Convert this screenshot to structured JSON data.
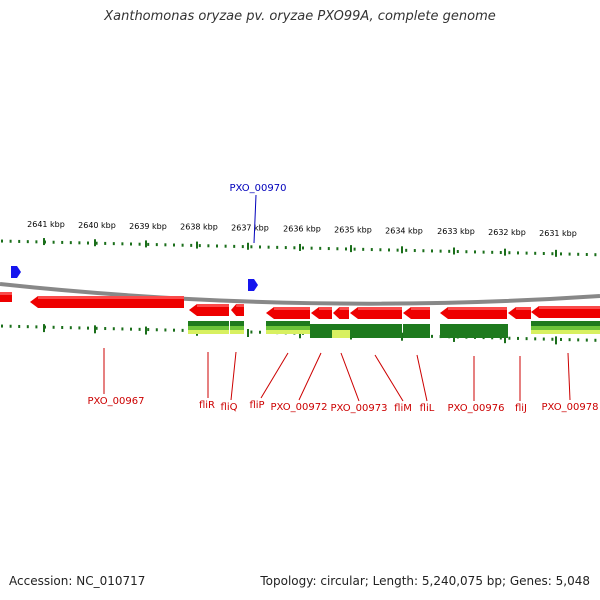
{
  "title": "Xanthomonas oryzae pv. oryzae PXO99A, complete genome",
  "footer": {
    "accession": "Accession: NC_010717",
    "summary": "Topology: circular; Length: 5,240,075 bp; Genes: 5,048"
  },
  "colors": {
    "gene": "#ee0000",
    "gene_label": "#cc0000",
    "highlight_label": "#0000bb",
    "tick": "#1a6e1a",
    "backbone": "#888888",
    "feature_dark": "#1e7a1e",
    "feature_mid": "#6cc43a",
    "feature_light": "#d8f060"
  },
  "scale": {
    "ticks": [
      {
        "label": "2641 kbp",
        "value": 2641
      },
      {
        "label": "2640 kbp",
        "value": 2640
      },
      {
        "label": "2639 kbp",
        "value": 2639
      },
      {
        "label": "2638 kbp",
        "value": 2638
      },
      {
        "label": "2637 kbp",
        "value": 2637
      },
      {
        "label": "2636 kbp",
        "value": 2636
      },
      {
        "label": "2635 kbp",
        "value": 2635
      },
      {
        "label": "2634 kbp",
        "value": 2634
      },
      {
        "label": "2633 kbp",
        "value": 2633
      },
      {
        "label": "2632 kbp",
        "value": 2632
      },
      {
        "label": "2631 kbp",
        "value": 2631
      }
    ]
  },
  "highlighted_feature": {
    "label": "PXO_00970",
    "icon": "blue-arrow-marker"
  },
  "genes": [
    {
      "label": "PXO_00967",
      "strand": "-"
    },
    {
      "label": "fliR",
      "strand": "-"
    },
    {
      "label": "fliQ",
      "strand": "-"
    },
    {
      "label": "fliP",
      "strand": "-"
    },
    {
      "label": "PXO_00972",
      "strand": "-"
    },
    {
      "label": "PXO_00973",
      "strand": "-"
    },
    {
      "label": "fliM",
      "strand": "-"
    },
    {
      "label": "fliL",
      "strand": "-"
    },
    {
      "label": "PXO_00976",
      "strand": "-"
    },
    {
      "label": "fliJ",
      "strand": "-"
    },
    {
      "label": "PXO_00978",
      "strand": "-"
    }
  ]
}
